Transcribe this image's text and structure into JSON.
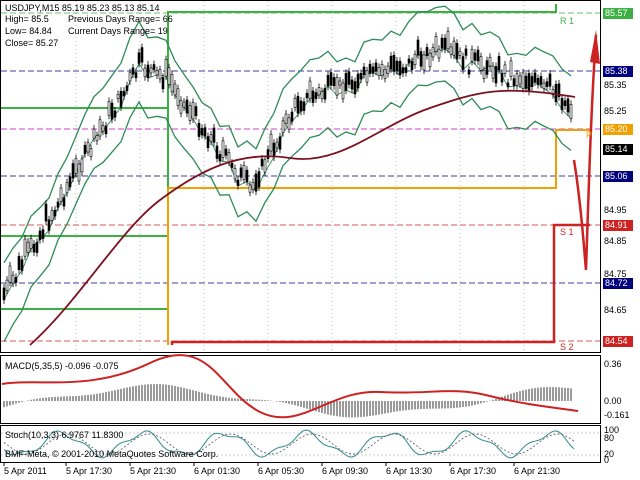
{
  "header": {
    "symbol_line": "USDJPY,M15  85.19 85.23 85.13 85.14",
    "high": "High= 85.5",
    "low": "Low= 84.84",
    "close": "Close= 85.27",
    "prev_range": "Previous Days Range= 66",
    "curr_range": "Current Days Range= 19"
  },
  "price_axis": {
    "labels": [
      "85.57",
      "85.38",
      "85.35",
      "85.25",
      "85.20",
      "85.14",
      "85.06",
      "84.95",
      "84.91",
      "84.85",
      "84.75",
      "84.72",
      "84.65",
      "84.54"
    ]
  },
  "levels": {
    "r1": "R 1",
    "p": "P",
    "s1": "S 1",
    "s2": "S 2"
  },
  "macd": {
    "title": "MACD(5,35,5) -0.096 -0.075",
    "labels": [
      "0.36",
      "0.00",
      "-0.161"
    ]
  },
  "stoch": {
    "title": "Stoch(10,3,3) 6.9767 11.8300",
    "labels": [
      "100",
      "80",
      "20",
      "0"
    ]
  },
  "footer": {
    "copyright": "BMF-Meta, © 2001-2010 MetaQuotes Software Corp."
  },
  "time_axis": [
    "5 Apr 2011",
    "5 Apr 17:30",
    "5 Apr 21:30",
    "6 Apr 01:30",
    "6 Apr 05:30",
    "6 Apr 09:30",
    "6 Apr 13:30",
    "6 Apr 17:30",
    "6 Apr 21:30"
  ],
  "colors": {
    "green": "#3cb043",
    "red": "#cc2222",
    "orange": "#f0a000",
    "navy": "#00007f",
    "bollinger": "#2e8b57",
    "ma": "#7b1020"
  }
}
